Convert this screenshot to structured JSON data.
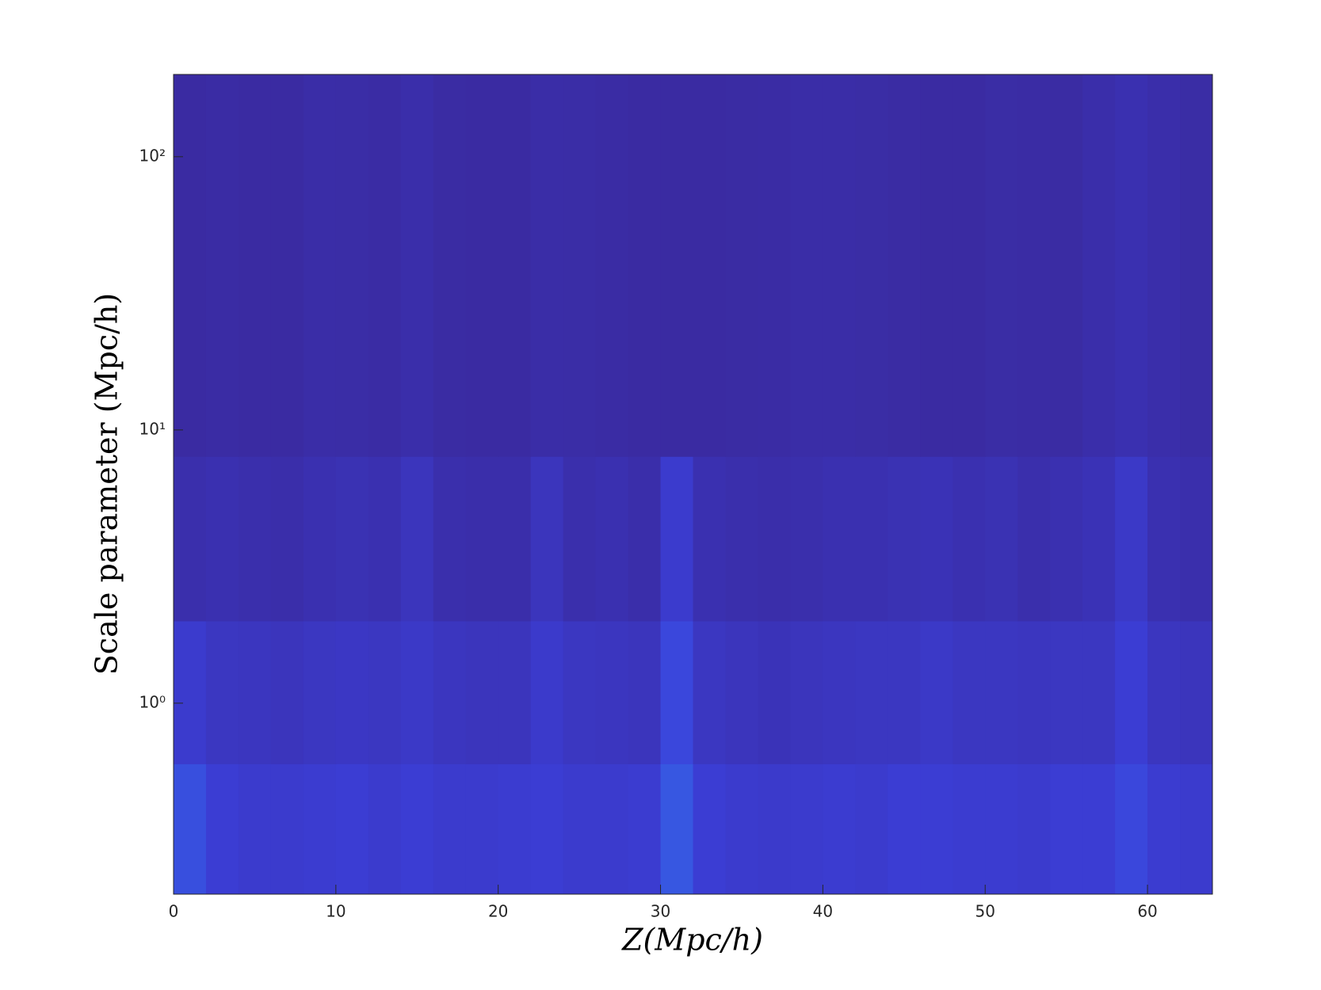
{
  "chart_data": {
    "type": "heatmap",
    "xlabel": "Z(Mpc/h)",
    "ylabel": "Scale parameter (Mpc/h)",
    "xlim": [
      0,
      64
    ],
    "ylim": [
      0.2,
      200
    ],
    "ylog": true,
    "xticks": [
      0,
      10,
      20,
      30,
      40,
      50,
      60
    ],
    "yticks": [
      {
        "value": 1,
        "label": "10⁰"
      },
      {
        "value": 10,
        "label": "10¹"
      },
      {
        "value": 100,
        "label": "10²"
      }
    ],
    "x_edges": [
      0,
      2,
      4,
      6,
      8,
      10,
      12,
      14,
      16,
      18,
      20,
      22,
      24,
      26,
      28,
      30,
      32,
      34,
      36,
      38,
      40,
      42,
      44,
      46,
      48,
      50,
      52,
      54,
      56,
      58,
      60,
      62,
      64
    ],
    "y_edges": [
      0.2,
      0.6,
      2,
      8,
      200
    ],
    "colormap": [
      "#3a2a9e",
      "#3b3fd9",
      "#2e8ef2"
    ],
    "z": [
      [
        0.6,
        0.45,
        0.4,
        0.4,
        0.42,
        0.45,
        0.4,
        0.45,
        0.4,
        0.4,
        0.42,
        0.45,
        0.4,
        0.4,
        0.42,
        0.65,
        0.45,
        0.4,
        0.38,
        0.4,
        0.42,
        0.4,
        0.45,
        0.45,
        0.42,
        0.42,
        0.4,
        0.45,
        0.45,
        0.55,
        0.42,
        0.4
      ],
      [
        0.4,
        0.3,
        0.28,
        0.25,
        0.3,
        0.32,
        0.3,
        0.35,
        0.28,
        0.25,
        0.25,
        0.38,
        0.3,
        0.28,
        0.25,
        0.55,
        0.3,
        0.25,
        0.22,
        0.25,
        0.28,
        0.3,
        0.3,
        0.35,
        0.3,
        0.3,
        0.28,
        0.3,
        0.3,
        0.45,
        0.28,
        0.25
      ],
      [
        0.12,
        0.15,
        0.12,
        0.1,
        0.15,
        0.18,
        0.15,
        0.25,
        0.12,
        0.1,
        0.1,
        0.25,
        0.12,
        0.15,
        0.1,
        0.4,
        0.15,
        0.12,
        0.1,
        0.12,
        0.15,
        0.15,
        0.18,
        0.2,
        0.15,
        0.18,
        0.12,
        0.15,
        0.2,
        0.35,
        0.15,
        0.12
      ],
      [
        0.03,
        0.05,
        0.03,
        0.03,
        0.08,
        0.07,
        0.05,
        0.1,
        0.04,
        0.03,
        0.03,
        0.08,
        0.07,
        0.05,
        0.03,
        0.03,
        0.03,
        0.04,
        0.05,
        0.08,
        0.08,
        0.06,
        0.04,
        0.03,
        0.03,
        0.06,
        0.05,
        0.04,
        0.1,
        0.15,
        0.1,
        0.06
      ]
    ]
  }
}
